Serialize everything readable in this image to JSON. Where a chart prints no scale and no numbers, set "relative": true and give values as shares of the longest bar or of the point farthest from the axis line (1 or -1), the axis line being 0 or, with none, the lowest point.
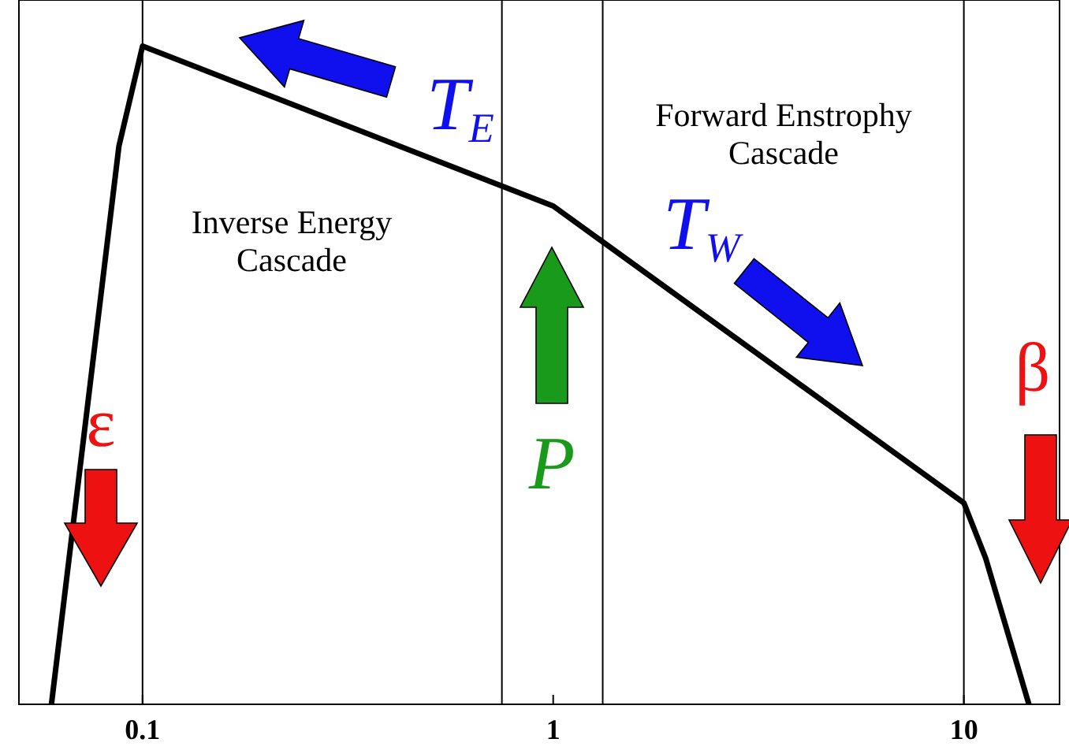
{
  "chart_data": {
    "type": "line",
    "relative": true,
    "log": "x",
    "x": [
      0.06,
      0.0876,
      0.1,
      1,
      10,
      11.3,
      14.4
    ],
    "series": [
      {
        "color": "#000000",
        "values": [
          0,
          0.848,
          1,
          0.757,
          0.306,
          0.222,
          0
        ]
      }
    ],
    "xlim": [
      0.05,
      17.1
    ],
    "xticks": [
      0.1,
      1,
      10
    ],
    "ref_lines": [
      {
        "axis": "x",
        "value": 0.1,
        "color": "#000000"
      },
      {
        "axis": "x",
        "value": 0.75,
        "color": "#000000"
      },
      {
        "axis": "x",
        "value": 1.32,
        "color": "#000000"
      },
      {
        "axis": "x",
        "value": 10,
        "color": "#000000"
      }
    ],
    "annotations": [
      "Inverse Energy Cascade",
      "Forward Enstrophy Cascade",
      "T$_{E}$",
      "T$_{W}$",
      "P",
      "ε",
      "β"
    ],
    "grid": false,
    "marker": "none",
    "line_style": "solid"
  }
}
